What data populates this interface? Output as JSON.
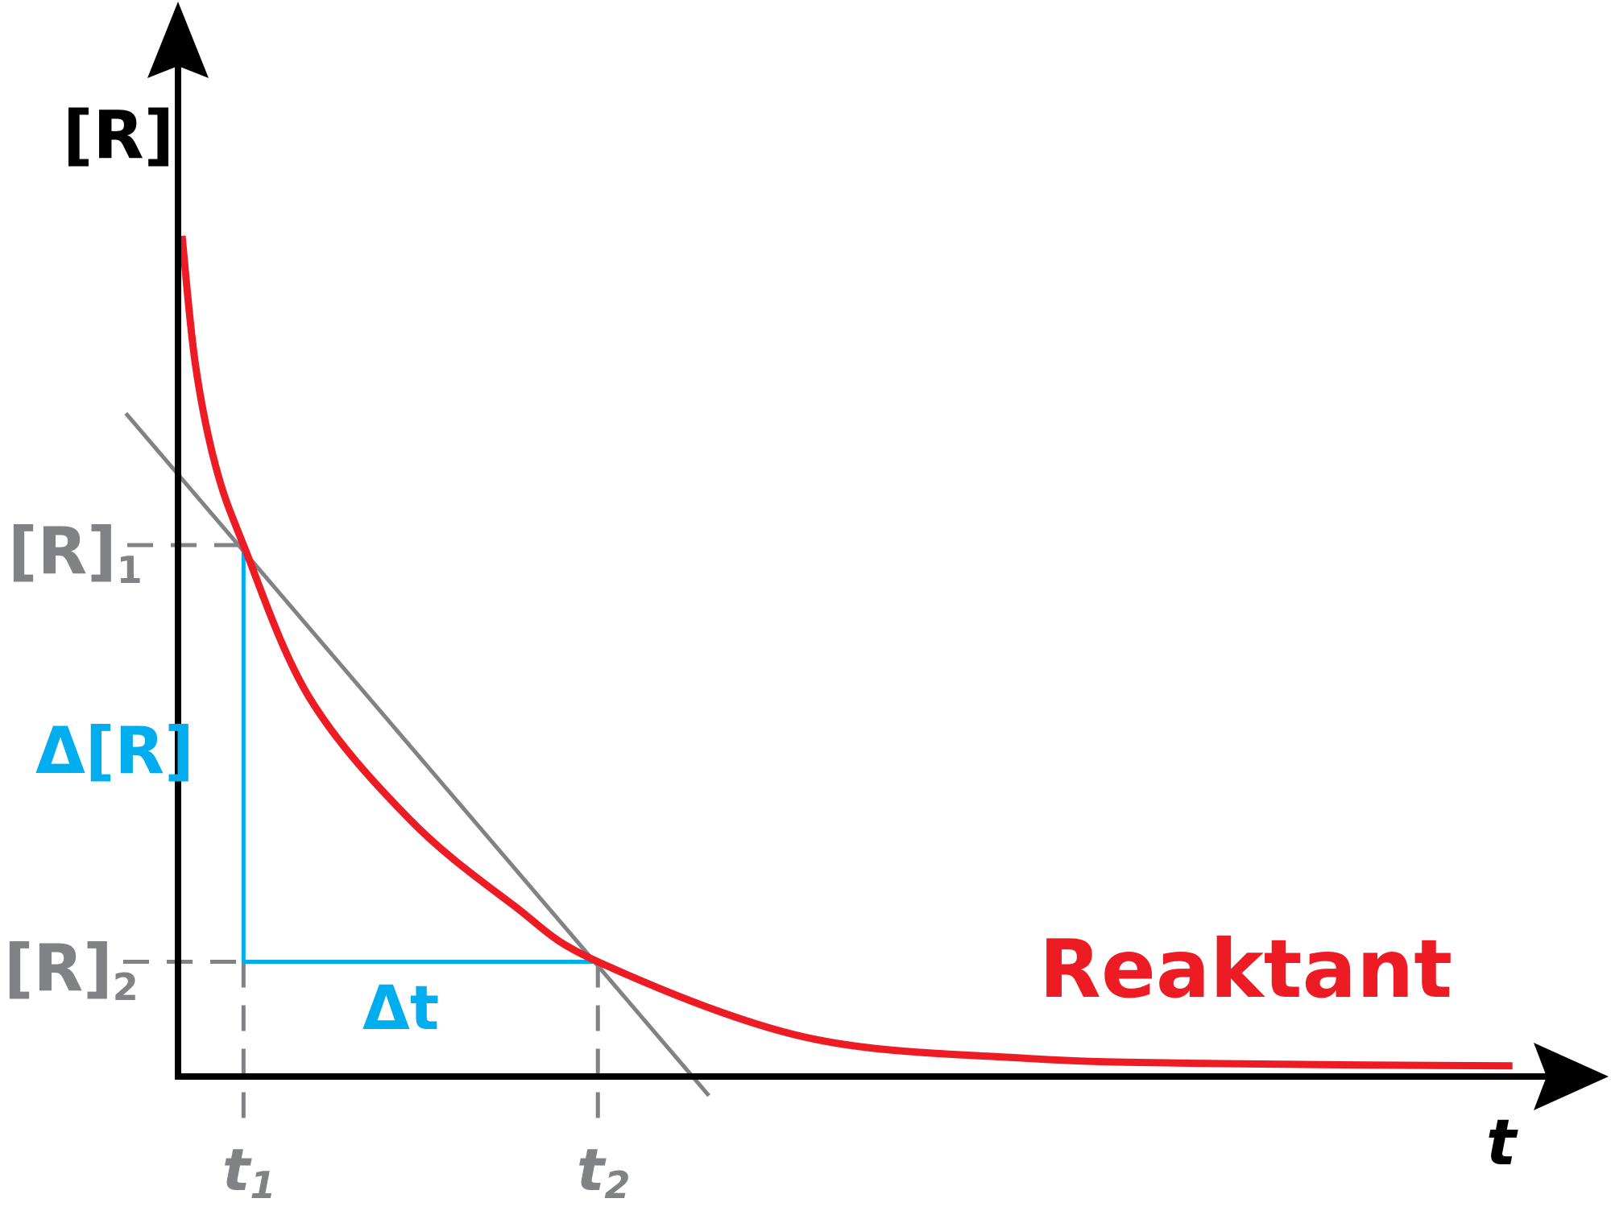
{
  "chart_data": {
    "type": "line",
    "title": "",
    "xlabel": "t",
    "ylabel": "[R]",
    "xlim": [
      0,
      10.69
    ],
    "ylim": [
      0,
      10.13
    ],
    "grid": false,
    "series": [
      {
        "name": "Reaktant",
        "color": "#ed1c24",
        "x": [
          0.03,
          0.13,
          0.28,
          0.49,
          0.98,
          1.74,
          2.51,
          3.14,
          4.69,
          6.36,
          7.89,
          9.98
        ],
        "y": [
          7.91,
          6.7,
          5.75,
          5.0,
          3.57,
          2.41,
          1.61,
          1.08,
          0.37,
          0.17,
          0.12,
          0.1
        ]
      }
    ],
    "secant_line": {
      "color": "#808285",
      "x": [
        -0.39,
        3.97
      ],
      "y": [
        6.24,
        -0.18
      ]
    },
    "points": {
      "t1": {
        "label": "t",
        "sub": "1",
        "t": 0.49
      },
      "t2": {
        "label": "t",
        "sub": "2",
        "t": 3.14
      },
      "R1": {
        "label": "[R]",
        "sub": "1",
        "value": 5.0
      },
      "R2": {
        "label": "[R]",
        "sub": "2",
        "value": 1.08
      }
    },
    "annotations": {
      "delta_R": "Δ[R]",
      "delta_t": "Δt"
    },
    "colors": {
      "axis": "#000000",
      "curve": "#ed1c24",
      "delta": "#00aeef",
      "guide": "#808285"
    }
  }
}
